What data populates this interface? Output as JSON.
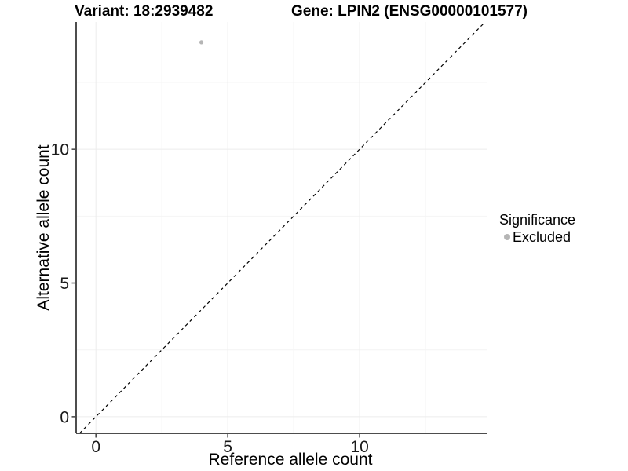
{
  "titles": {
    "variant": "Variant: 18:2939482",
    "gene": "Gene: LPIN2 (ENSG00000101577)"
  },
  "legend": {
    "title": "Significance",
    "items": [
      {
        "label": "Excluded",
        "color": "#b5b5b5"
      }
    ]
  },
  "chart_data": {
    "type": "scatter",
    "title_left": "Variant: 18:2939482",
    "title_right": "Gene: LPIN2 (ENSG00000101577)",
    "xlabel": "Reference allele count",
    "ylabel": "Alternative allele count",
    "xlim": [
      -0.75,
      14.85
    ],
    "ylim": [
      -0.62,
      14.76
    ],
    "x_ticks": [
      0,
      5,
      10
    ],
    "y_ticks": [
      0,
      5,
      10
    ],
    "x_minor_ticks": [
      2.5,
      7.5,
      12.5
    ],
    "y_minor_ticks": [
      2.5,
      7.5,
      12.5
    ],
    "grid": true,
    "legend_position": "right",
    "series": [
      {
        "name": "Excluded",
        "color": "#b5b5b5",
        "points": [
          {
            "x": 4,
            "y": 14
          }
        ]
      }
    ],
    "reference_line": {
      "slope": 1,
      "intercept": 0,
      "style": "dashed",
      "color": "#000000"
    },
    "colors": {
      "axis_line": "#4d4d4d",
      "grid_major": "#ececec",
      "grid_minor": "#f4f4f4",
      "tick_text": "#1a1a1a",
      "background": "#ffffff"
    }
  }
}
